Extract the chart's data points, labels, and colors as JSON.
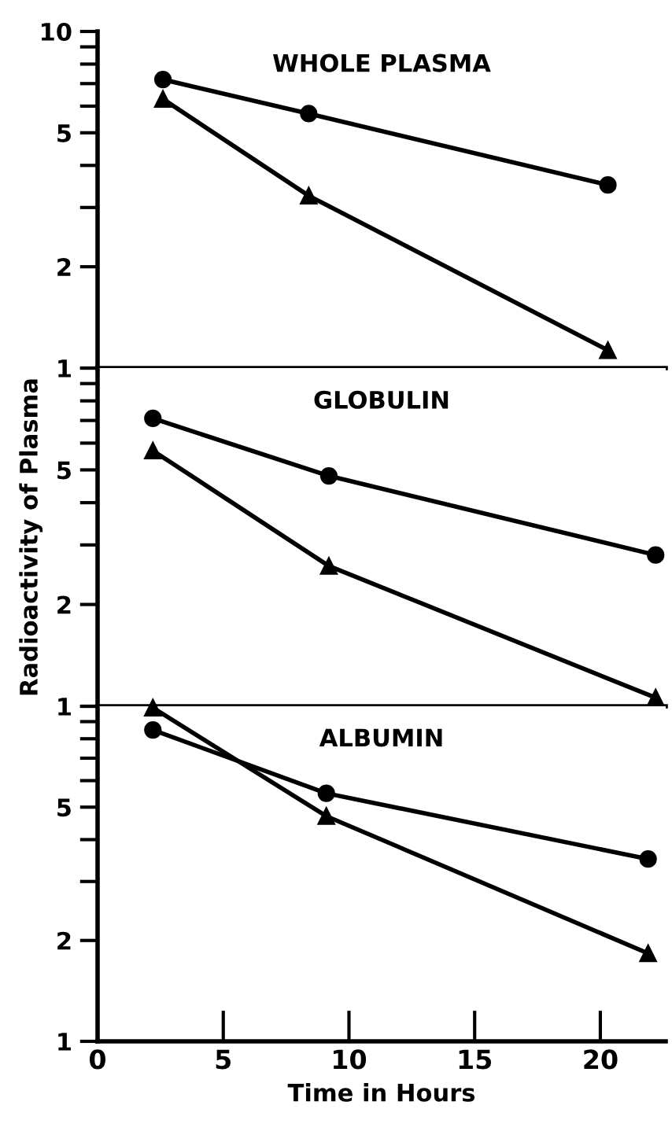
{
  "chart_data": [
    {
      "type": "line",
      "title": "WHOLE PLASMA",
      "xlim": [
        0,
        22.6
      ],
      "ylim": [
        1,
        10
      ],
      "log": "y",
      "tick_labels": "y",
      "yticks": [
        1,
        2,
        {
          "value": 3,
          "label": null
        },
        {
          "value": 4,
          "label": null
        },
        5,
        {
          "value": 6,
          "label": null
        },
        {
          "value": 7,
          "label": null
        },
        {
          "value": 8,
          "label": null
        },
        {
          "value": 9,
          "label": null
        },
        10
      ],
      "series": [
        {
          "color": "#000000",
          "marker": "circle",
          "x": [
            2.6,
            8.4,
            20.3
          ],
          "values": [
            7.2,
            5.7,
            3.5
          ]
        },
        {
          "color": "#000000",
          "marker": "triangle",
          "x": [
            2.6,
            8.4,
            20.3
          ],
          "values": [
            6.3,
            3.25,
            1.13
          ]
        }
      ]
    },
    {
      "type": "line",
      "title": "GLOBULIN",
      "ylabel": "Radioactivity of Plasma",
      "xlim": [
        0,
        22.6
      ],
      "ylim": [
        1,
        10
      ],
      "log": "y",
      "tick_labels": "y",
      "yticks": [
        1,
        2,
        {
          "value": 3,
          "label": null
        },
        {
          "value": 4,
          "label": null
        },
        5,
        {
          "value": 6,
          "label": null
        },
        {
          "value": 7,
          "label": null
        },
        {
          "value": 8,
          "label": null
        },
        {
          "value": 9,
          "label": null
        },
        {
          "value": 10,
          "label": null
        }
      ],
      "series": [
        {
          "color": "#000000",
          "marker": "circle",
          "x": [
            2.2,
            9.2,
            22.2
          ],
          "values": [
            7.1,
            4.8,
            2.8
          ]
        },
        {
          "color": "#000000",
          "marker": "triangle",
          "x": [
            2.2,
            9.2,
            22.2
          ],
          "values": [
            5.7,
            2.6,
            1.06
          ]
        }
      ]
    },
    {
      "type": "line",
      "title": "ALBUMIN",
      "xlabel": "Time in Hours",
      "xlim": [
        0,
        22.6
      ],
      "ylim": [
        1,
        10
      ],
      "log": "y",
      "xticks": [
        0,
        5,
        10,
        15,
        20
      ],
      "yticks": [
        1,
        2,
        {
          "value": 3,
          "label": null
        },
        {
          "value": 4,
          "label": null
        },
        5,
        {
          "value": 6,
          "label": null
        },
        {
          "value": 7,
          "label": null
        },
        {
          "value": 8,
          "label": null
        },
        {
          "value": 9,
          "label": null
        },
        {
          "value": 10,
          "label": null
        }
      ],
      "series": [
        {
          "color": "#000000",
          "marker": "circle",
          "x": [
            2.2,
            9.1,
            21.9
          ],
          "values": [
            8.5,
            5.5,
            3.5
          ]
        },
        {
          "color": "#000000",
          "marker": "triangle",
          "x": [
            2.2,
            9.1,
            21.9
          ],
          "values": [
            9.9,
            4.7,
            1.83
          ]
        }
      ]
    }
  ]
}
